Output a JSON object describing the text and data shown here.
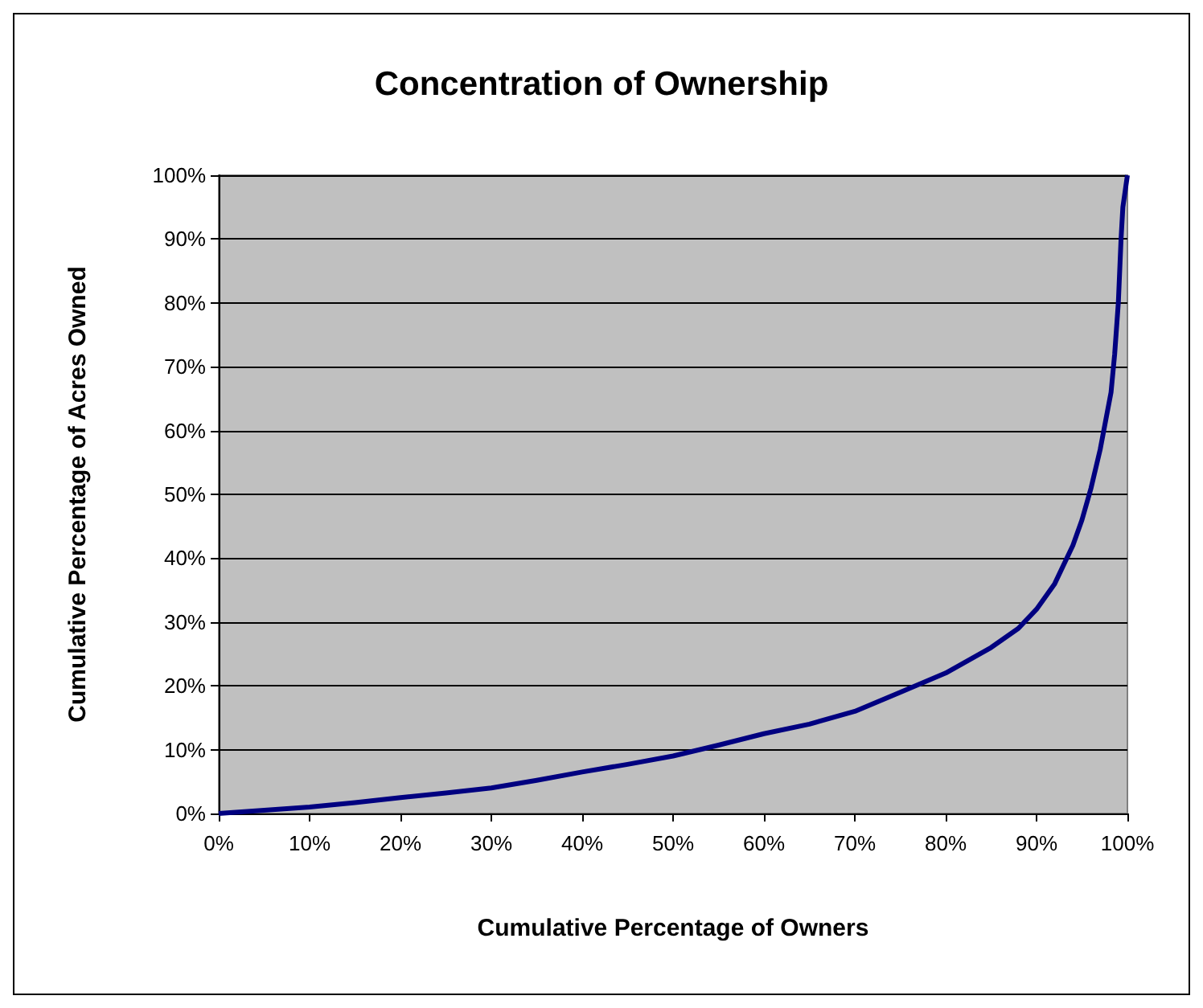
{
  "chart_data": {
    "type": "line",
    "title": "Concentration of Ownership",
    "xlabel": "Cumulative Percentage of Owners",
    "ylabel": "Cumulative Percentage of Acres Owned",
    "x": [
      0,
      5,
      10,
      15,
      20,
      25,
      30,
      35,
      40,
      45,
      50,
      55,
      60,
      65,
      70,
      75,
      80,
      85,
      88,
      90,
      92,
      94,
      95,
      96,
      97,
      97.8,
      98.2,
      98.6,
      99,
      99.3,
      99.5,
      100
    ],
    "series": [
      {
        "color": "#000080",
        "values": [
          0,
          0.5,
          1,
          1.7,
          2.5,
          3.2,
          4,
          5.2,
          6.5,
          7.7,
          9,
          10.7,
          12.5,
          14,
          16,
          19,
          22,
          26,
          29,
          32,
          36,
          42,
          46,
          51,
          57,
          63,
          66,
          72,
          80,
          90,
          95,
          100
        ]
      }
    ],
    "xlim": [
      0,
      100
    ],
    "ylim": [
      0,
      100
    ],
    "xticks": [
      {
        "value": 0,
        "label": "0%"
      },
      {
        "value": 10,
        "label": "10%"
      },
      {
        "value": 20,
        "label": "20%"
      },
      {
        "value": 30,
        "label": "30%"
      },
      {
        "value": 40,
        "label": "40%"
      },
      {
        "value": 50,
        "label": "50%"
      },
      {
        "value": 60,
        "label": "60%"
      },
      {
        "value": 70,
        "label": "70%"
      },
      {
        "value": 80,
        "label": "80%"
      },
      {
        "value": 90,
        "label": "90%"
      },
      {
        "value": 100,
        "label": "100%"
      }
    ],
    "yticks": [
      {
        "value": 0,
        "label": "0%"
      },
      {
        "value": 10,
        "label": "10%"
      },
      {
        "value": 20,
        "label": "20%"
      },
      {
        "value": 30,
        "label": "30%"
      },
      {
        "value": 40,
        "label": "40%"
      },
      {
        "value": 50,
        "label": "50%"
      },
      {
        "value": 60,
        "label": "60%"
      },
      {
        "value": 70,
        "label": "70%"
      },
      {
        "value": 80,
        "label": "80%"
      },
      {
        "value": 90,
        "label": "90%"
      },
      {
        "value": 100,
        "label": "100%"
      }
    ],
    "grid": "y",
    "marker": "none",
    "line_style": "solid"
  }
}
